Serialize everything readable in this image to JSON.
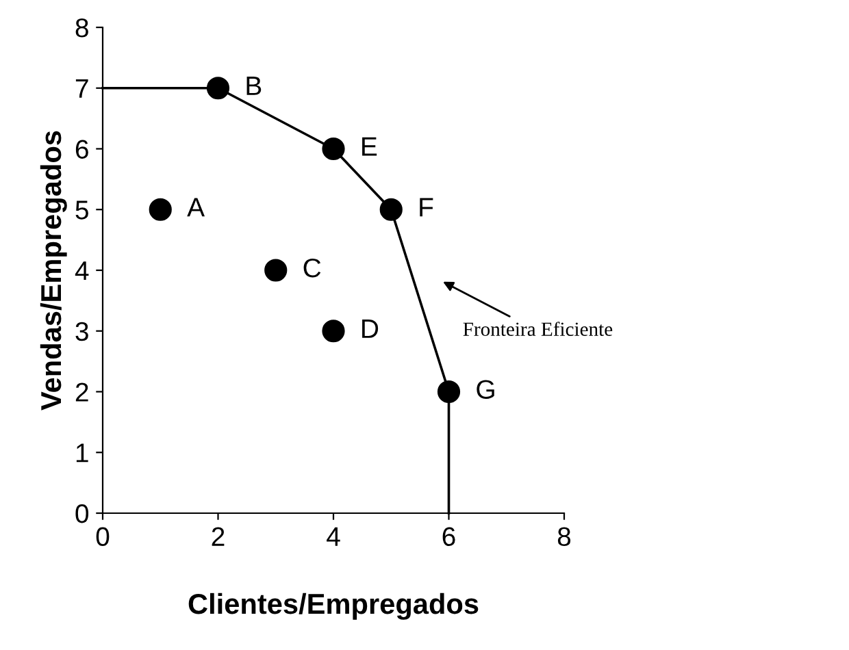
{
  "chart_data": {
    "type": "scatter",
    "xlabel": "Clientes/Empregados",
    "ylabel": "Vendas/Empregados",
    "xlim": [
      0,
      8
    ],
    "ylim": [
      0,
      8
    ],
    "xticks": [
      0,
      2,
      4,
      6,
      8
    ],
    "yticks": [
      0,
      1,
      2,
      3,
      4,
      5,
      6,
      7,
      8
    ],
    "grid": false,
    "legend": false,
    "series": [
      {
        "type": "line",
        "color": "#000000",
        "marker": "none",
        "x": [
          0,
          2,
          4,
          5,
          6,
          6
        ],
        "values": [
          7,
          7,
          6,
          5,
          2,
          0
        ]
      },
      {
        "color": "#000000",
        "marker": "circle",
        "x": [
          1,
          2,
          3,
          4,
          4,
          5,
          6
        ],
        "values": [
          5,
          7,
          4,
          3,
          6,
          5,
          2
        ]
      }
    ],
    "annotations": [
      {
        "text": "A",
        "x": 1,
        "y": 5
      },
      {
        "text": "B",
        "x": 2,
        "y": 7
      },
      {
        "text": "C",
        "x": 3,
        "y": 4
      },
      {
        "text": "D",
        "x": 4,
        "y": 3
      },
      {
        "text": "E",
        "x": 4,
        "y": 6
      },
      {
        "text": "F",
        "x": 5,
        "y": 5
      },
      {
        "text": "G",
        "x": 6,
        "y": 2
      },
      "Fronteira Eficiente"
    ]
  }
}
